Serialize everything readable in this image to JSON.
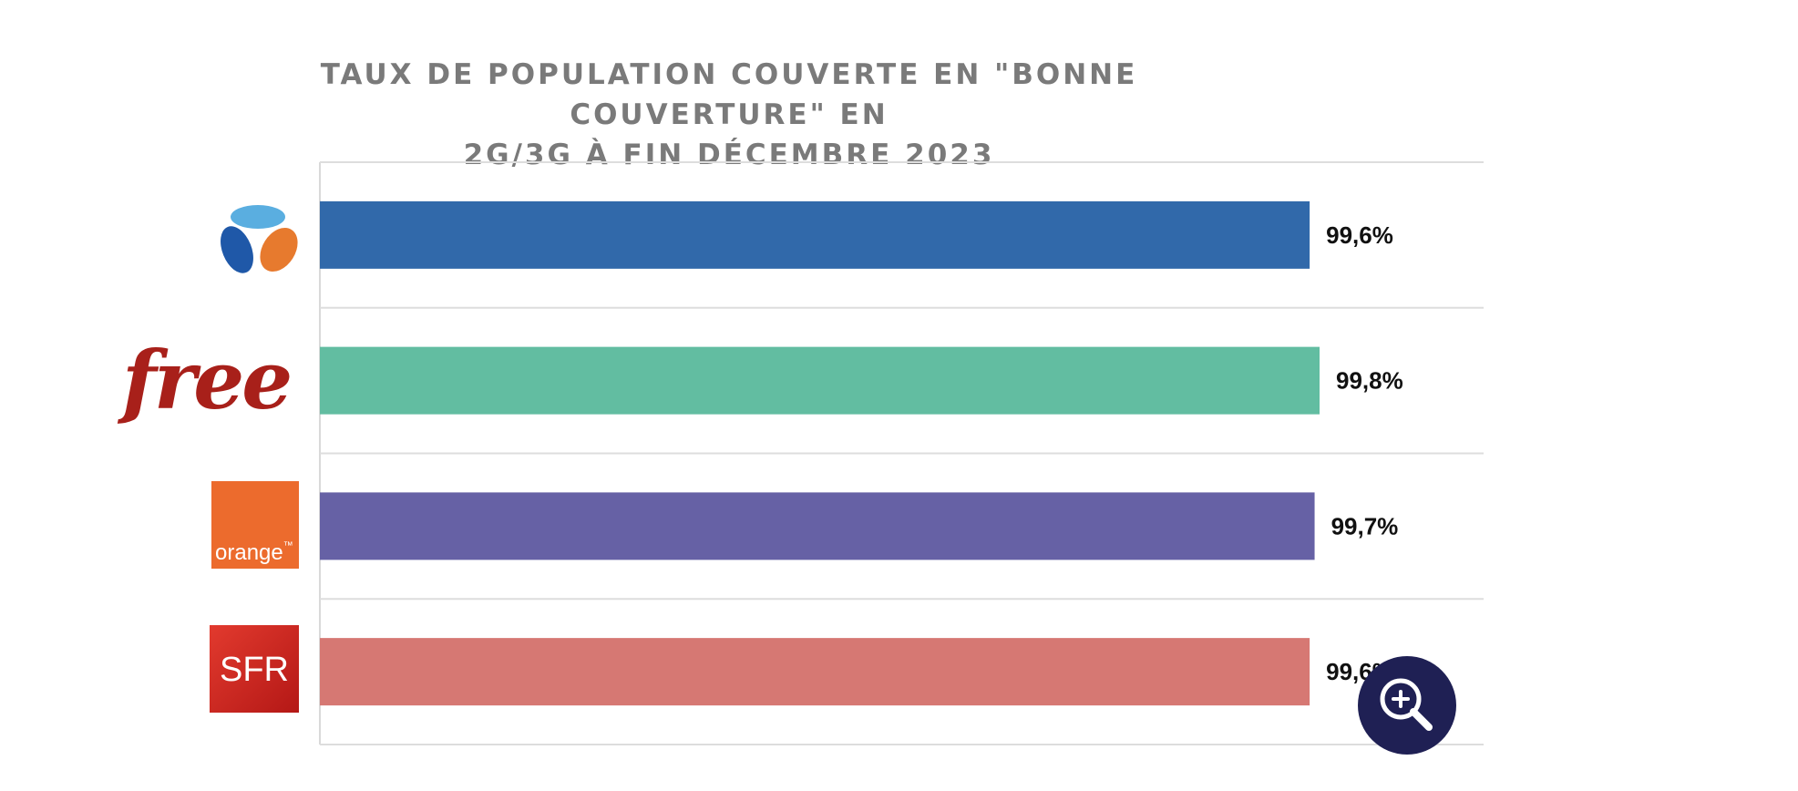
{
  "chart_data": {
    "type": "bar",
    "orientation": "horizontal",
    "title_lines": [
      "TAUX DE POPULATION COUVERTE EN \"BONNE COUVERTURE\" EN",
      "2G/3G À FIN DÉCEMBRE 2023"
    ],
    "categories": [
      "Bouygues",
      "free",
      "orange",
      "SFR"
    ],
    "values": [
      99.6,
      99.8,
      99.7,
      99.6
    ],
    "value_labels": [
      "99,6%",
      "99,8%",
      "99,7%",
      "99,6%"
    ],
    "colors": [
      "#3169aa",
      "#62bda1",
      "#6661a5",
      "#d67873"
    ],
    "legend": "none",
    "grid": true
  },
  "logos": {
    "free_text": "free",
    "orange_text": "orange",
    "orange_tm": "™",
    "sfr_text": "SFR"
  },
  "controls": {
    "zoom_icon": "zoom-in-icon"
  }
}
